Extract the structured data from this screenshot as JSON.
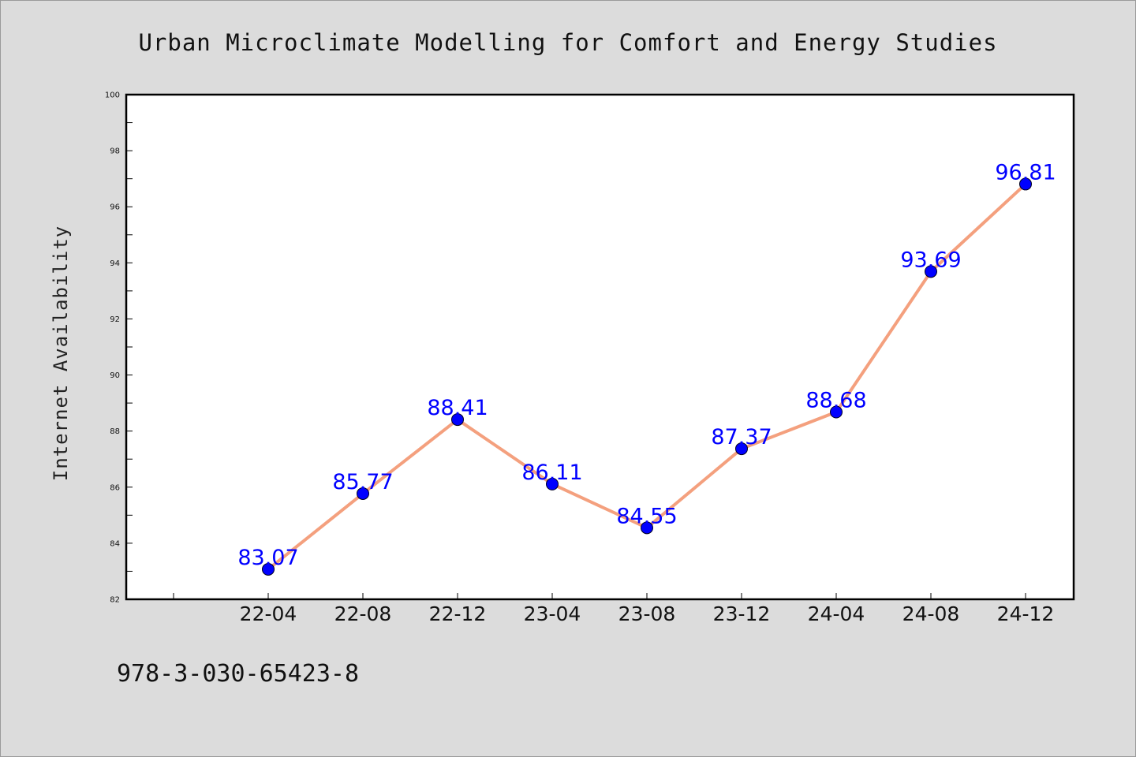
{
  "chart_data": {
    "type": "line",
    "title": "Urban Microclimate Modelling for Comfort and Energy Studies",
    "xlabel": "",
    "ylabel": "Internet Availability",
    "categories": [
      "22-04",
      "22-08",
      "22-12",
      "23-04",
      "23-08",
      "23-12",
      "24-04",
      "24-08",
      "24-12"
    ],
    "values": [
      83.07,
      85.77,
      88.41,
      86.11,
      84.55,
      87.37,
      88.68,
      93.69,
      96.81
    ],
    "data_labels": [
      "83.07",
      "85.77",
      "88.41",
      "86.11",
      "84.55",
      "87.37",
      "88.68",
      "93.69",
      "96.81"
    ],
    "ylim": [
      82,
      100
    ],
    "yticks": [
      82,
      84,
      86,
      88,
      90,
      92,
      94,
      96,
      98,
      100
    ],
    "grid": false,
    "line_color": "#f4a07e",
    "marker_color": "#0000ff",
    "label_color": "#0000ff"
  },
  "footer": {
    "isbn": "978-3-030-65423-8"
  }
}
